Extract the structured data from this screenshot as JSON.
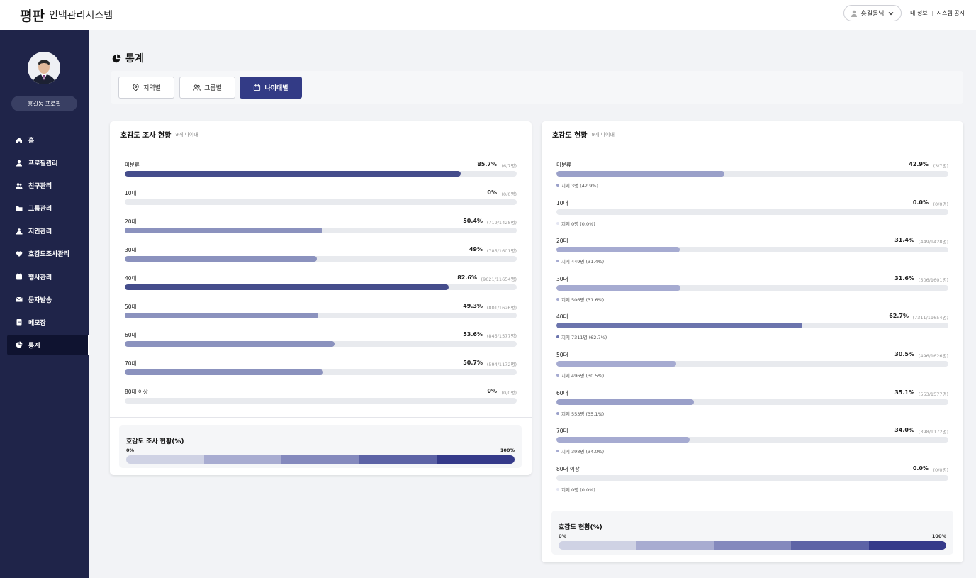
{
  "header": {
    "logo": "평판",
    "subtitle": "인맥관리시스템",
    "user_label": "홍길동님",
    "link_myinfo": "내 정보",
    "link_notice": "시스템 공지"
  },
  "sidebar": {
    "profile_button": "홍길동 프로필",
    "items": [
      {
        "label": "홈",
        "icon": "home-icon"
      },
      {
        "label": "프로필관리",
        "icon": "person-icon"
      },
      {
        "label": "친구관리",
        "icon": "people-icon"
      },
      {
        "label": "그룹관리",
        "icon": "folder-icon"
      },
      {
        "label": "지인관리",
        "icon": "contact-icon"
      },
      {
        "label": "호감도조사관리",
        "icon": "heart-icon"
      },
      {
        "label": "행사관리",
        "icon": "calendar-icon"
      },
      {
        "label": "문자발송",
        "icon": "mail-icon"
      },
      {
        "label": "메모장",
        "icon": "memo-icon"
      },
      {
        "label": "통계",
        "icon": "pie-chart-icon"
      }
    ]
  },
  "page": {
    "title": "통계",
    "tabs": [
      {
        "label": "지역별",
        "icon": "location-icon"
      },
      {
        "label": "그룹별",
        "icon": "group-icon"
      },
      {
        "label": "나이대별",
        "icon": "calendar-icon"
      }
    ]
  },
  "left_card": {
    "title": "호감도 조사 현황",
    "subtitle": "9개 나이대",
    "rows": [
      {
        "label": "미분류",
        "pct": "85.7%",
        "count": "(6/7명)",
        "value": 85.7,
        "color": "#454d8c"
      },
      {
        "label": "10대",
        "pct": "0%",
        "count": "(0/0명)",
        "value": 0,
        "color": "#8b92be"
      },
      {
        "label": "20대",
        "pct": "50.4%",
        "count": "(719/1428명)",
        "value": 50.4,
        "color": "#8b92be"
      },
      {
        "label": "30대",
        "pct": "49%",
        "count": "(785/1601명)",
        "value": 49,
        "color": "#8b92be"
      },
      {
        "label": "40대",
        "pct": "82.6%",
        "count": "(9621/11654명)",
        "value": 82.6,
        "color": "#454d8c"
      },
      {
        "label": "50대",
        "pct": "49.3%",
        "count": "(801/1626명)",
        "value": 49.3,
        "color": "#8b92be"
      },
      {
        "label": "60대",
        "pct": "53.6%",
        "count": "(845/1577명)",
        "value": 53.6,
        "color": "#8b92be"
      },
      {
        "label": "70대",
        "pct": "50.7%",
        "count": "(594/1172명)",
        "value": 50.7,
        "color": "#8b92be"
      },
      {
        "label": "80대 이상",
        "pct": "0%",
        "count": "(0/0명)",
        "value": 0,
        "color": "#8b92be"
      }
    ],
    "scale": {
      "title": "호감도 조사 현황(%)",
      "min": "0%",
      "max": "100%"
    }
  },
  "right_card": {
    "title": "호감도 현황",
    "subtitle": "9개 나이대",
    "rows": [
      {
        "label": "미분류",
        "pct": "42.9%",
        "count": "(3/7명)",
        "value": 42.9,
        "legend": "지지 3명 (42.9%)",
        "color": "#9aa0c9"
      },
      {
        "label": "10대",
        "pct": "0.0%",
        "count": "(0/0명)",
        "value": 0,
        "legend": "지지 0명 (0.0%)",
        "color": "#e3e5f1"
      },
      {
        "label": "20대",
        "pct": "31.4%",
        "count": "(449/1428명)",
        "value": 31.4,
        "legend": "지지 449명 (31.4%)",
        "color": "#a6abd1"
      },
      {
        "label": "30대",
        "pct": "31.6%",
        "count": "(506/1601명)",
        "value": 31.6,
        "legend": "지지 506명 (31.6%)",
        "color": "#a6abd1"
      },
      {
        "label": "40대",
        "pct": "62.7%",
        "count": "(7311/11654명)",
        "value": 62.7,
        "legend": "지지 7311명 (62.7%)",
        "color": "#6b74ad"
      },
      {
        "label": "50대",
        "pct": "30.5%",
        "count": "(496/1626명)",
        "value": 30.5,
        "legend": "지지 496명 (30.5%)",
        "color": "#a6abd1"
      },
      {
        "label": "60대",
        "pct": "35.1%",
        "count": "(553/1577명)",
        "value": 35.1,
        "legend": "지지 553명 (35.1%)",
        "color": "#9aa0c9"
      },
      {
        "label": "70대",
        "pct": "34.0%",
        "count": "(398/1172명)",
        "value": 34.0,
        "legend": "지지 398명 (34.0%)",
        "color": "#a6abd1"
      },
      {
        "label": "80대 이상",
        "pct": "0.0%",
        "count": "(0/0명)",
        "value": 0,
        "legend": "지지 0명 (0.0%)",
        "color": "#e3e5f1"
      }
    ],
    "scale": {
      "title": "호감도 현황(%)",
      "min": "0%",
      "max": "100%"
    }
  },
  "colors": {
    "scale": [
      "#cfd2e4",
      "#a8acd1",
      "#8489bd",
      "#5d63a6",
      "#353a8a"
    ],
    "accent": "#333b86",
    "sidebar": "#1f2449"
  }
}
